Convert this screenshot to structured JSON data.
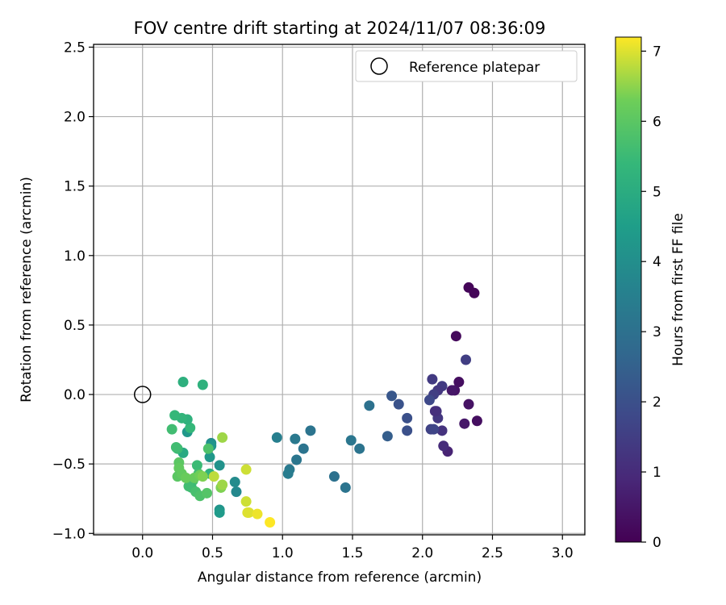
{
  "chart_data": {
    "type": "scatter",
    "title": "FOV centre drift starting at 2024/11/07 08:36:09",
    "xlabel": "Angular distance from reference (arcmin)",
    "ylabel": "Rotation from reference (arcmin)",
    "xlim": [
      -0.35,
      3.16
    ],
    "ylim": [
      -1.01,
      2.52
    ],
    "xticks": [
      0.0,
      0.5,
      1.0,
      1.5,
      2.0,
      2.5,
      3.0
    ],
    "xtick_labels": [
      "0.0",
      "0.5",
      "1.0",
      "1.5",
      "2.0",
      "2.5",
      "3.0"
    ],
    "yticks": [
      -1.0,
      -0.5,
      0.0,
      0.5,
      1.0,
      1.5,
      2.0,
      2.5
    ],
    "ytick_labels": [
      "−1.0",
      "−0.5",
      "0.0",
      "0.5",
      "1.0",
      "1.5",
      "2.0",
      "2.5"
    ],
    "grid": true,
    "legend": {
      "placement": "top-right",
      "entries": [
        "Reference platepar"
      ]
    },
    "reference_point": {
      "x": 0.0,
      "y": 0.0,
      "marker": "open-circle"
    },
    "colorbar": {
      "label": "Hours from first FF file",
      "colormap": "viridis",
      "min": 0,
      "max": 7.2,
      "ticks": [
        0,
        1,
        2,
        3,
        4,
        5,
        6,
        7
      ],
      "tick_labels": [
        "0",
        "1",
        "2",
        "3",
        "4",
        "5",
        "6",
        "7"
      ]
    },
    "points": [
      {
        "x": 2.33,
        "y": 0.77,
        "c": 0.1
      },
      {
        "x": 2.37,
        "y": 0.73,
        "c": 0.1
      },
      {
        "x": 2.24,
        "y": 0.42,
        "c": 0.2
      },
      {
        "x": 2.26,
        "y": 0.09,
        "c": 0.3
      },
      {
        "x": 2.23,
        "y": 0.03,
        "c": 0.4
      },
      {
        "x": 2.21,
        "y": 0.03,
        "c": 0.5
      },
      {
        "x": 2.33,
        "y": -0.07,
        "c": 0.4
      },
      {
        "x": 2.39,
        "y": -0.19,
        "c": 0.3
      },
      {
        "x": 2.3,
        "y": -0.21,
        "c": 0.5
      },
      {
        "x": 2.18,
        "y": -0.41,
        "c": 0.8
      },
      {
        "x": 2.15,
        "y": -0.37,
        "c": 1.0
      },
      {
        "x": 2.14,
        "y": -0.26,
        "c": 1.2
      },
      {
        "x": 2.11,
        "y": -0.17,
        "c": 1.3
      },
      {
        "x": 2.1,
        "y": -0.12,
        "c": 1.2
      },
      {
        "x": 2.09,
        "y": -0.12,
        "c": 1.1
      },
      {
        "x": 2.06,
        "y": -0.25,
        "c": 1.6
      },
      {
        "x": 2.08,
        "y": -0.25,
        "c": 1.7
      },
      {
        "x": 2.31,
        "y": 0.25,
        "c": 1.5
      },
      {
        "x": 2.14,
        "y": 0.06,
        "c": 1.4
      },
      {
        "x": 2.11,
        "y": 0.03,
        "c": 1.3
      },
      {
        "x": 2.08,
        "y": 0.0,
        "c": 1.5
      },
      {
        "x": 2.07,
        "y": 0.11,
        "c": 1.4
      },
      {
        "x": 2.05,
        "y": -0.04,
        "c": 1.8
      },
      {
        "x": 1.89,
        "y": -0.17,
        "c": 2.0
      },
      {
        "x": 1.89,
        "y": -0.26,
        "c": 2.0
      },
      {
        "x": 1.83,
        "y": -0.07,
        "c": 2.1
      },
      {
        "x": 1.78,
        "y": -0.01,
        "c": 2.2
      },
      {
        "x": 1.75,
        "y": -0.3,
        "c": 2.4
      },
      {
        "x": 1.62,
        "y": -0.08,
        "c": 3.0
      },
      {
        "x": 1.55,
        "y": -0.39,
        "c": 3.1
      },
      {
        "x": 1.49,
        "y": -0.33,
        "c": 3.2
      },
      {
        "x": 1.45,
        "y": -0.67,
        "c": 3.1
      },
      {
        "x": 1.37,
        "y": -0.59,
        "c": 3.0
      },
      {
        "x": 1.2,
        "y": -0.26,
        "c": 3.1
      },
      {
        "x": 1.15,
        "y": -0.39,
        "c": 3.1
      },
      {
        "x": 1.1,
        "y": -0.47,
        "c": 3.2
      },
      {
        "x": 1.09,
        "y": -0.32,
        "c": 3.3
      },
      {
        "x": 1.05,
        "y": -0.54,
        "c": 3.3
      },
      {
        "x": 1.04,
        "y": -0.57,
        "c": 3.4
      },
      {
        "x": 0.96,
        "y": -0.31,
        "c": 3.5
      },
      {
        "x": 0.67,
        "y": -0.7,
        "c": 3.8
      },
      {
        "x": 0.66,
        "y": -0.63,
        "c": 3.9
      },
      {
        "x": 0.55,
        "y": -0.83,
        "c": 4.2
      },
      {
        "x": 0.55,
        "y": -0.85,
        "c": 4.4
      },
      {
        "x": 0.55,
        "y": -0.51,
        "c": 4.1
      },
      {
        "x": 0.49,
        "y": -0.35,
        "c": 4.0
      },
      {
        "x": 0.49,
        "y": -0.37,
        "c": 4.2
      },
      {
        "x": 0.48,
        "y": -0.45,
        "c": 4.3
      },
      {
        "x": 0.32,
        "y": -0.27,
        "c": 4.3
      },
      {
        "x": 0.29,
        "y": -0.42,
        "c": 4.9
      },
      {
        "x": 0.29,
        "y": 0.09,
        "c": 5.1
      },
      {
        "x": 0.43,
        "y": 0.07,
        "c": 5.2
      },
      {
        "x": 0.34,
        "y": -0.24,
        "c": 5.4
      },
      {
        "x": 0.32,
        "y": -0.18,
        "c": 5.2
      },
      {
        "x": 0.28,
        "y": -0.17,
        "c": 5.3
      },
      {
        "x": 0.23,
        "y": -0.15,
        "c": 5.4
      },
      {
        "x": 0.21,
        "y": -0.25,
        "c": 5.6
      },
      {
        "x": 0.25,
        "y": -0.39,
        "c": 5.5
      },
      {
        "x": 0.24,
        "y": -0.38,
        "c": 5.6
      },
      {
        "x": 0.47,
        "y": -0.39,
        "c": 5.8
      },
      {
        "x": 0.48,
        "y": -0.57,
        "c": 5.2
      },
      {
        "x": 0.39,
        "y": -0.51,
        "c": 5.5
      },
      {
        "x": 0.4,
        "y": -0.57,
        "c": 5.6
      },
      {
        "x": 0.36,
        "y": -0.62,
        "c": 5.7
      },
      {
        "x": 0.35,
        "y": -0.67,
        "c": 5.5
      },
      {
        "x": 0.33,
        "y": -0.66,
        "c": 5.6
      },
      {
        "x": 0.38,
        "y": -0.7,
        "c": 5.7
      },
      {
        "x": 0.41,
        "y": -0.73,
        "c": 5.8
      },
      {
        "x": 0.46,
        "y": -0.71,
        "c": 5.9
      },
      {
        "x": 0.26,
        "y": -0.49,
        "c": 6.0
      },
      {
        "x": 0.26,
        "y": -0.53,
        "c": 6.1
      },
      {
        "x": 0.25,
        "y": -0.59,
        "c": 6.0
      },
      {
        "x": 0.28,
        "y": -0.57,
        "c": 6.1
      },
      {
        "x": 0.31,
        "y": -0.6,
        "c": 6.2
      },
      {
        "x": 0.37,
        "y": -0.6,
        "c": 6.2
      },
      {
        "x": 0.41,
        "y": -0.58,
        "c": 6.3
      },
      {
        "x": 0.43,
        "y": -0.59,
        "c": 6.4
      },
      {
        "x": 0.56,
        "y": -0.67,
        "c": 6.4
      },
      {
        "x": 0.57,
        "y": -0.65,
        "c": 6.6
      },
      {
        "x": 0.57,
        "y": -0.31,
        "c": 6.6
      },
      {
        "x": 0.51,
        "y": -0.59,
        "c": 6.8
      },
      {
        "x": 0.74,
        "y": -0.54,
        "c": 6.9
      },
      {
        "x": 0.74,
        "y": -0.77,
        "c": 6.9
      },
      {
        "x": 0.75,
        "y": -0.85,
        "c": 7.0
      },
      {
        "x": 0.76,
        "y": -0.85,
        "c": 7.0
      },
      {
        "x": 0.82,
        "y": -0.86,
        "c": 7.1
      },
      {
        "x": 0.91,
        "y": -0.92,
        "c": 7.2
      }
    ]
  }
}
